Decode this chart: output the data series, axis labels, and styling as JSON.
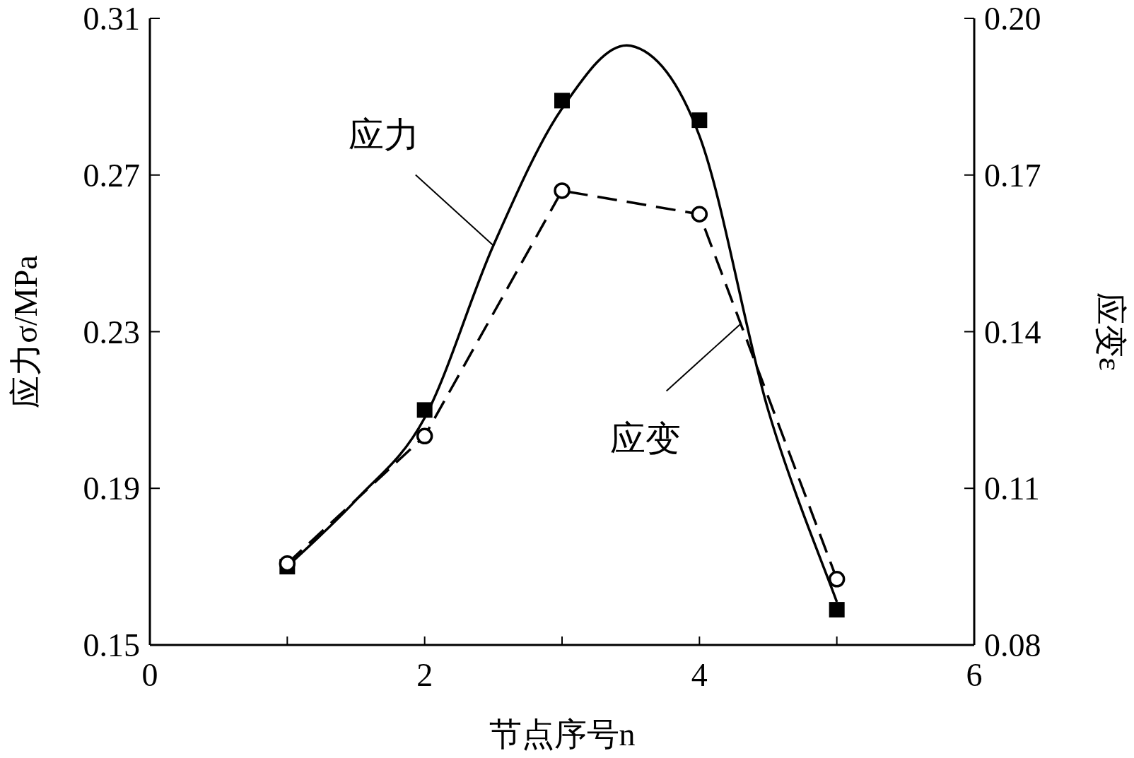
{
  "chart_data": {
    "type": "line",
    "xlabel": "节点序号n",
    "ylabel": "应力σ/MPa",
    "y2label": "应变ε",
    "xlim": [
      0,
      6
    ],
    "xticks": [
      0,
      {
        "value": 1,
        "label": null
      },
      2,
      {
        "value": 3,
        "label": null
      },
      4,
      {
        "value": 5,
        "label": null
      },
      6
    ],
    "ylim": [
      0.15,
      0.31
    ],
    "yticks": [
      0.15,
      0.19,
      0.23,
      0.27,
      0.31
    ],
    "y2lim": [
      0.08,
      0.2
    ],
    "y2ticks": [
      0.08,
      0.11,
      0.14,
      0.17,
      {
        "value": 0.2,
        "label": "0.20"
      }
    ],
    "grid": false,
    "annotations": [
      {
        "text": "应力",
        "x": 2.5,
        "y": 0.252
      },
      {
        "text": "应变",
        "x": 4.3,
        "y": 0.232
      }
    ],
    "series": [
      {
        "type": "scatter",
        "marker": "square",
        "color": "#000000",
        "x": [
          1,
          2,
          3,
          4,
          5
        ],
        "values": [
          0.17,
          0.21,
          0.289,
          0.284,
          0.159
        ]
      },
      {
        "marker": "none",
        "line_style": "solid",
        "color": "#000000",
        "x": [
          1,
          1.5,
          2,
          2.5,
          3,
          3.5,
          4,
          4.5,
          5
        ],
        "values": [
          0.17,
          0.187,
          0.208,
          0.252,
          0.287,
          0.303,
          0.28,
          0.21,
          0.161
        ]
      },
      {
        "axis": "y2",
        "marker": "circle",
        "line_style": "dashed",
        "color": "#000000",
        "x": [
          1,
          2,
          3,
          4,
          5
        ],
        "values": [
          0.0956,
          0.12,
          0.167,
          0.1625,
          0.0926
        ]
      }
    ]
  }
}
